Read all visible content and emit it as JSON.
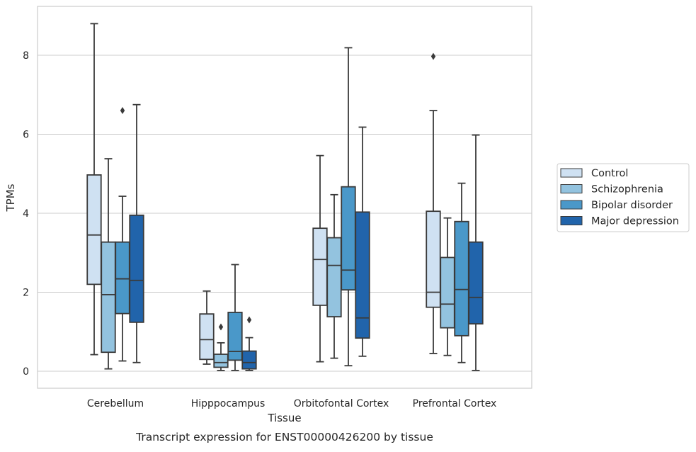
{
  "caption": "Transcript expression for ENST00000426200 by tissue",
  "chart_data": {
    "type": "boxplot",
    "xlabel": "Tissue",
    "ylabel": "TPMs",
    "ylim": [
      -0.4,
      9.25
    ],
    "yticks": [
      0,
      2,
      4,
      6,
      8
    ],
    "grid": true,
    "legend_position": "right",
    "categories": [
      "Cerebellum",
      "Hipppocampus",
      "Orbitofontal Cortex",
      "Prefrontal Cortex"
    ],
    "series": [
      {
        "name": "Control",
        "color": "#cfe1f2",
        "boxes": [
          {
            "whislo": 0.42,
            "q1": 2.2,
            "med": 3.45,
            "q3": 4.97,
            "whishi": 8.8,
            "fliers": []
          },
          {
            "whislo": 0.18,
            "q1": 0.3,
            "med": 0.8,
            "q3": 1.45,
            "whishi": 2.03,
            "fliers": []
          },
          {
            "whislo": 0.24,
            "q1": 1.67,
            "med": 2.83,
            "q3": 3.62,
            "whishi": 5.46,
            "fliers": []
          },
          {
            "whislo": 0.45,
            "q1": 1.62,
            "med": 2.0,
            "q3": 4.05,
            "whishi": 6.6,
            "fliers": [
              7.97
            ]
          }
        ]
      },
      {
        "name": "Schizophrenia",
        "color": "#93c3df",
        "boxes": [
          {
            "whislo": 0.06,
            "q1": 0.48,
            "med": 1.94,
            "q3": 3.27,
            "whishi": 5.38,
            "fliers": []
          },
          {
            "whislo": 0.02,
            "q1": 0.1,
            "med": 0.22,
            "q3": 0.43,
            "whishi": 0.72,
            "fliers": [
              1.12
            ]
          },
          {
            "whislo": 0.33,
            "q1": 1.38,
            "med": 2.68,
            "q3": 3.38,
            "whishi": 4.47,
            "fliers": []
          },
          {
            "whislo": 0.4,
            "q1": 1.1,
            "med": 1.7,
            "q3": 2.88,
            "whishi": 3.88,
            "fliers": []
          }
        ]
      },
      {
        "name": "Bipolar disorder",
        "color": "#4a98c9",
        "boxes": [
          {
            "whislo": 0.26,
            "q1": 1.46,
            "med": 2.34,
            "q3": 3.27,
            "whishi": 4.43,
            "fliers": [
              6.6
            ]
          },
          {
            "whislo": 0.02,
            "q1": 0.28,
            "med": 0.5,
            "q3": 1.49,
            "whishi": 2.7,
            "fliers": []
          },
          {
            "whislo": 0.14,
            "q1": 2.06,
            "med": 2.56,
            "q3": 4.67,
            "whishi": 8.19,
            "fliers": []
          },
          {
            "whislo": 0.22,
            "q1": 0.9,
            "med": 2.07,
            "q3": 3.79,
            "whishi": 4.76,
            "fliers": []
          }
        ]
      },
      {
        "name": "Major depression",
        "color": "#2164ab",
        "boxes": [
          {
            "whislo": 0.22,
            "q1": 1.24,
            "med": 2.3,
            "q3": 3.95,
            "whishi": 6.75,
            "fliers": []
          },
          {
            "whislo": 0.02,
            "q1": 0.06,
            "med": 0.22,
            "q3": 0.51,
            "whishi": 0.85,
            "fliers": [
              1.3
            ]
          },
          {
            "whislo": 0.38,
            "q1": 0.84,
            "med": 1.35,
            "q3": 4.03,
            "whishi": 6.18,
            "fliers": []
          },
          {
            "whislo": 0.02,
            "q1": 1.2,
            "med": 1.87,
            "q3": 3.27,
            "whishi": 5.98,
            "fliers": []
          }
        ]
      }
    ]
  }
}
